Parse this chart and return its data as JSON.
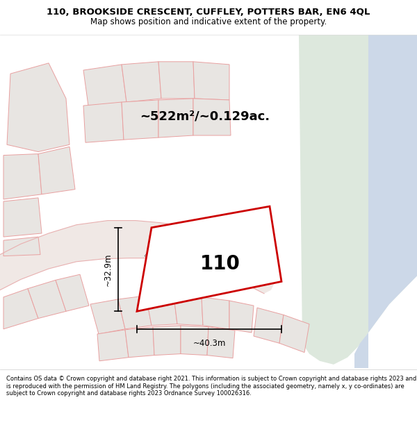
{
  "title_line1": "110, BROOKSIDE CRESCENT, CUFFLEY, POTTERS BAR, EN6 4QL",
  "title_line2": "Map shows position and indicative extent of the property.",
  "footer": "Contains OS data © Crown copyright and database right 2021. This information is subject to Crown copyright and database rights 2023 and is reproduced with the permission of HM Land Registry. The polygons (including the associated geometry, namely x, y co-ordinates) are subject to Crown copyright and database rights 2023 Ordnance Survey 100026316.",
  "area_text": "~522m²/~0.129ac.",
  "plot_number": "110",
  "dim_width": "~40.3m",
  "dim_height": "~32.9m",
  "map_bg": "#f5f3f0",
  "plot_fill": "#ffffff",
  "plot_outline": "#cc0000",
  "green_area": "#dde8dd",
  "blue_area": "#ccd8e8",
  "road_stroke": "#e8b0b0",
  "other_plot_fill": "#e8e5e2",
  "other_plot_outline": "#e8a0a0",
  "title_fontsize": 9.5,
  "subtitle_fontsize": 8.5,
  "area_fontsize": 13,
  "plot_num_fontsize": 20,
  "dim_fontsize": 8.5,
  "road_label_fontsize": 7.5,
  "footer_fontsize": 6.0
}
